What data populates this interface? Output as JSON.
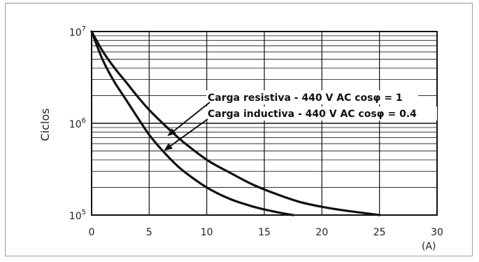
{
  "chart_data": {
    "type": "line",
    "ylabel": "Ciclos",
    "xunit": "(A)",
    "xlim": [
      0,
      30
    ],
    "ylim": [
      100000,
      10000000
    ],
    "yscale": "log",
    "grid": true,
    "x_ticks": [
      "0",
      "5",
      "10",
      "15",
      "20",
      "25",
      "30"
    ],
    "y_ticks": [
      {
        "base": "10",
        "exp": "7"
      },
      {
        "base": "10",
        "exp": "6"
      },
      {
        "base": "10",
        "exp": "5"
      }
    ],
    "series": [
      {
        "name": "Carga resistiva - 440 V AC cosφ = 1",
        "x": [
          0,
          1,
          2,
          3,
          4,
          5,
          6,
          7,
          8,
          10,
          12,
          14,
          16,
          18,
          20,
          22,
          24,
          25
        ],
        "y": [
          10000000,
          6000000,
          4000000,
          2800000,
          1950000,
          1400000,
          1050000,
          800000,
          620000,
          400000,
          290000,
          215000,
          170000,
          140000,
          123000,
          112000,
          104000,
          100000
        ]
      },
      {
        "name": "Carga inductiva - 440 V AC cosφ = 0.4",
        "x": [
          0,
          1,
          2,
          3,
          4,
          5,
          6,
          7,
          8,
          10,
          12,
          14,
          16,
          17.5
        ],
        "y": [
          10000000,
          4800000,
          2800000,
          1800000,
          1150000,
          750000,
          530000,
          390000,
          300000,
          200000,
          150000,
          124000,
          108000,
          100000
        ]
      }
    ],
    "annotations": [
      "Carga resistiva - 440 V AC cosφ = 1",
      "Carga inductiva - 440 V AC cosφ = 0.4"
    ]
  }
}
